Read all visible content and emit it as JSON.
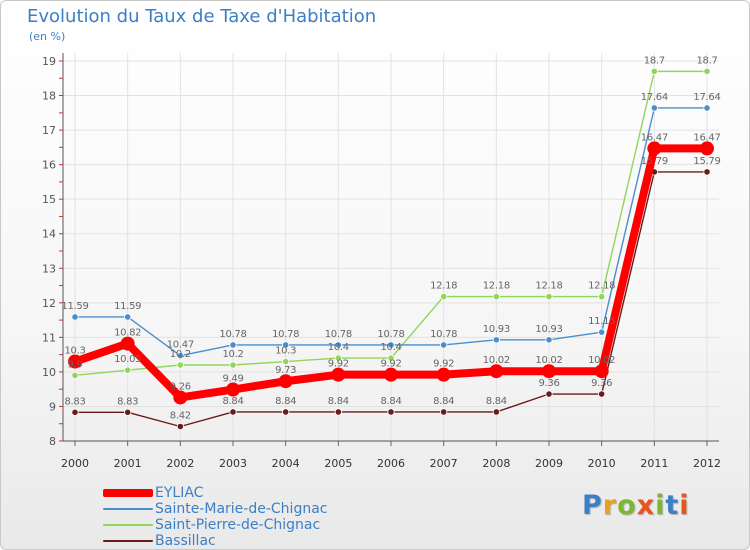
{
  "header": {
    "title": "Evolution du Taux de Taxe d'Habitation",
    "subtitle": "(en %)"
  },
  "logo": {
    "text": "Proxiti",
    "colors": [
      "#3b7fc4",
      "#e8a21c",
      "#7cb82f",
      "#e8541c",
      "#7cb82f",
      "#3b7fc4",
      "#e8541c"
    ]
  },
  "chart_data": {
    "type": "line",
    "x": [
      "2000",
      "2001",
      "2002",
      "2003",
      "2004",
      "2005",
      "2006",
      "2007",
      "2008",
      "2009",
      "2010",
      "2011",
      "2012"
    ],
    "ylim": [
      8,
      19
    ],
    "yticks": [
      "8",
      "9",
      "10",
      "11",
      "12",
      "13",
      "14",
      "15",
      "16",
      "17",
      "18",
      "19"
    ],
    "grid": true,
    "legend_position": "bottom-left",
    "series": [
      {
        "name": "Bassillac",
        "color": "#6b1a1a",
        "values": [
          8.83,
          8.83,
          8.42,
          8.84,
          8.84,
          8.84,
          8.84,
          8.84,
          8.84,
          9.36,
          9.36,
          15.79,
          15.79
        ],
        "labels": [
          "8.83",
          "8.83",
          "8.42",
          "8.84",
          "8.84",
          "8.84",
          "8.84",
          "8.84",
          "8.84",
          "9.36",
          "9.36",
          "15.79",
          "15.79"
        ]
      },
      {
        "name": "Saint-Pierre-de-Chignac",
        "color": "#8fd65a",
        "values": [
          9.9,
          10.05,
          10.2,
          10.2,
          10.3,
          10.4,
          10.4,
          12.18,
          12.18,
          12.18,
          12.18,
          18.7,
          18.7
        ],
        "labels": [
          "9.9",
          "10.05",
          "10.2",
          "10.2",
          "10.3",
          "10.4",
          "10.4",
          "12.18",
          "12.18",
          "12.18",
          "12.18",
          "18.7",
          "18.7"
        ]
      },
      {
        "name": "Sainte-Marie-de-Chignac",
        "color": "#4a8fcb",
        "values": [
          11.59,
          11.59,
          10.47,
          10.78,
          10.78,
          10.78,
          10.78,
          10.78,
          10.93,
          10.93,
          11.15,
          17.64,
          17.64
        ],
        "labels": [
          "11.59",
          "11.59",
          "10.47",
          "10.78",
          "10.78",
          "10.78",
          "10.78",
          "10.78",
          "10.93",
          "10.93",
          "11.15",
          "17.64",
          "17.64"
        ]
      },
      {
        "name": "EYLIAC",
        "color": "#ff0000",
        "values": [
          10.3,
          10.82,
          9.26,
          9.49,
          9.73,
          9.92,
          9.92,
          9.92,
          10.02,
          10.02,
          10.02,
          16.47,
          16.47
        ],
        "labels": [
          "10.3",
          "10.82",
          "9.26",
          "9.49",
          "9.73",
          "9.92",
          "9.92",
          "9.92",
          "10.02",
          "10.02",
          "10.02",
          "16.47",
          "16.47"
        ]
      }
    ]
  }
}
